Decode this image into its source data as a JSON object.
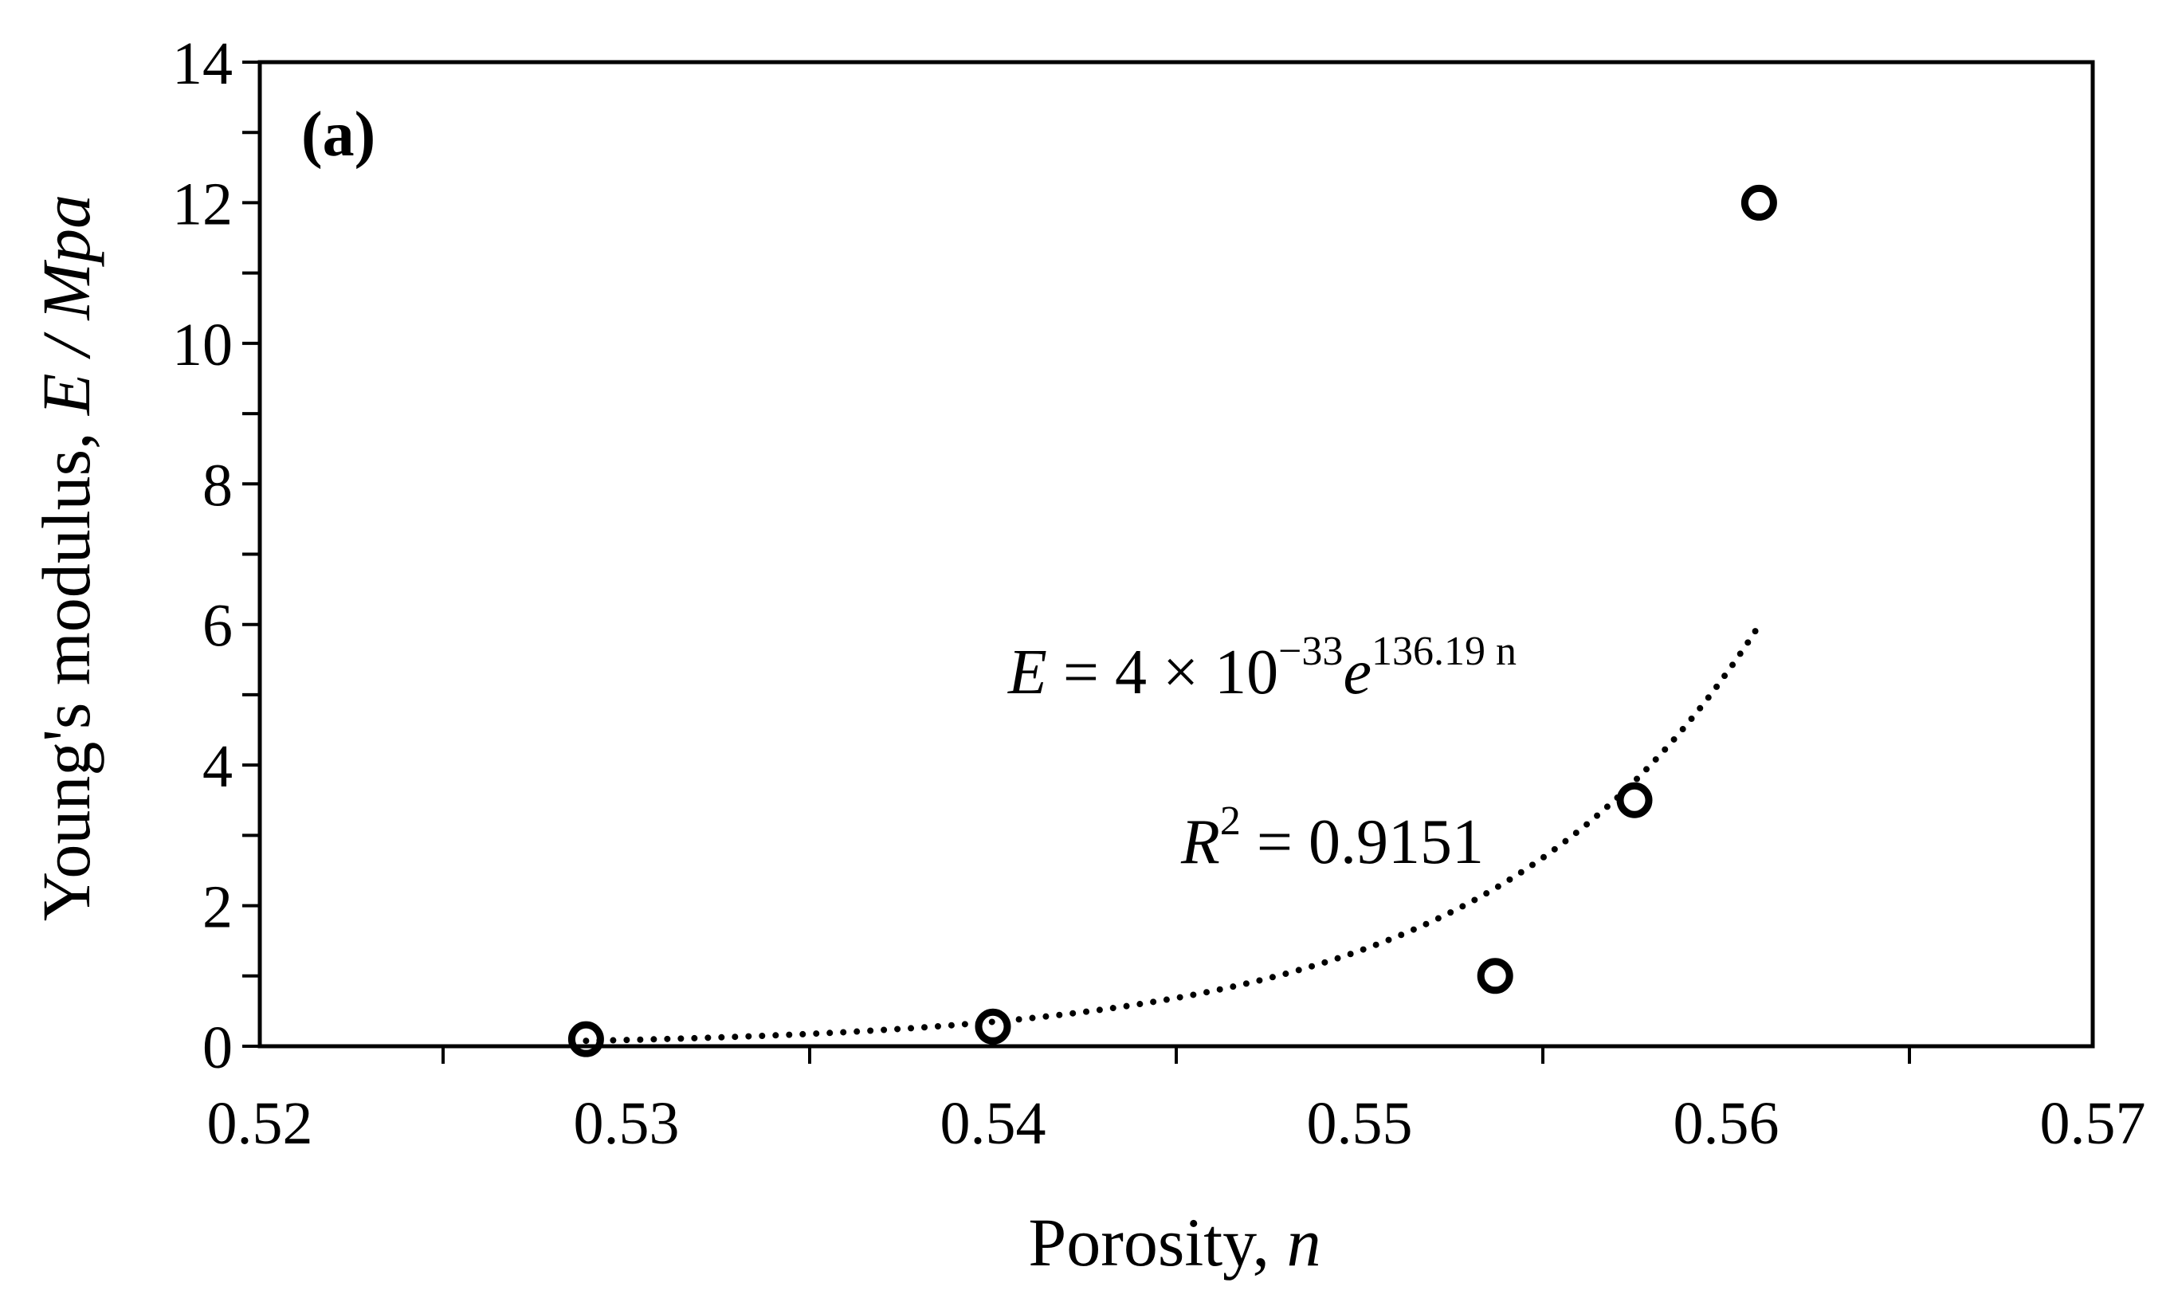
{
  "chart_data": {
    "type": "scatter",
    "panel_label": "(a)",
    "xlabel": {
      "text": "Porosity, ",
      "var": "n"
    },
    "ylabel": {
      "text": "Young's modulus, ",
      "var": "E / Mpa"
    },
    "xlim": [
      0.52,
      0.57
    ],
    "ylim": [
      0,
      14
    ],
    "x_ticks": [
      0.52,
      0.53,
      0.54,
      0.55,
      0.56,
      0.57
    ],
    "x_tick_labels": [
      "0.52",
      "0.53",
      "0.54",
      "0.55",
      "0.56",
      "0.57"
    ],
    "x_minor_step": 0.005,
    "y_ticks": [
      0,
      2,
      4,
      6,
      8,
      10,
      12,
      14
    ],
    "y_tick_labels": [
      "0",
      "2",
      "4",
      "6",
      "8",
      "10",
      "12",
      "14"
    ],
    "y_minor_step": 1,
    "grid": false,
    "series": [
      {
        "marker": "open-circle",
        "x": [
          0.5289,
          0.54,
          0.5537,
          0.5575,
          0.5609
        ],
        "y": [
          0.1,
          0.28,
          1.0,
          3.5,
          12.0
        ]
      }
    ],
    "trendline": {
      "type": "exponential",
      "style": "dotted",
      "a": 4e-33,
      "b": 136.19,
      "x_range": [
        0.5289,
        0.5609
      ]
    },
    "annotations": {
      "equation": {
        "lhs": "E",
        "rel": " = 4 × 10",
        "exp": "−33",
        "base": "e",
        "pow": "136.19 n"
      },
      "r_squared": {
        "lhs": "R",
        "exp": "2",
        "rel": " = 0.9151"
      }
    },
    "colors": {
      "axis": "#000000",
      "marker": "#000000",
      "trend": "#000000"
    }
  }
}
